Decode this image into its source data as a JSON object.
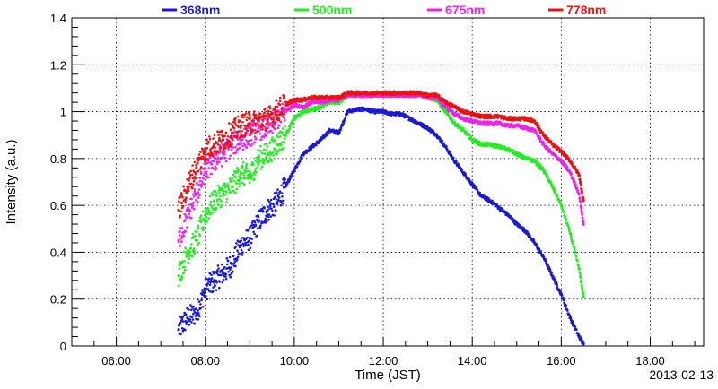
{
  "chart_data": {
    "type": "scatter",
    "title": "",
    "xlabel": "Time (JST)",
    "ylabel": "Intensity (a.u.)",
    "date": "2013-02-13",
    "x_unit": "hours (JST)",
    "xlim": [
      5.0,
      19.2
    ],
    "ylim": [
      0,
      1.4
    ],
    "x_ticks": [
      {
        "value": 6,
        "label": "06:00"
      },
      {
        "value": 8,
        "label": "08:00"
      },
      {
        "value": 10,
        "label": "10:00"
      },
      {
        "value": 12,
        "label": "12:00"
      },
      {
        "value": 14,
        "label": "14:00"
      },
      {
        "value": 16,
        "label": "16:00"
      },
      {
        "value": 18,
        "label": "18:00"
      }
    ],
    "y_ticks": [
      {
        "value": 0,
        "label": "0"
      },
      {
        "value": 0.2,
        "label": "0.2"
      },
      {
        "value": 0.4,
        "label": "0.4"
      },
      {
        "value": 0.6,
        "label": "0.6"
      },
      {
        "value": 0.8,
        "label": "0.8"
      },
      {
        "value": 1.0,
        "label": "1"
      },
      {
        "value": 1.2,
        "label": "1.2"
      },
      {
        "value": 1.4,
        "label": "1.4"
      }
    ],
    "grid": true,
    "legend_position": "top",
    "series": [
      {
        "name": "368nm",
        "color": "#1a1ad6",
        "x": [
          7.4,
          7.6,
          7.8,
          8.0,
          8.2,
          8.4,
          8.6,
          8.8,
          9.0,
          9.2,
          9.4,
          9.6,
          9.8,
          10.0,
          10.2,
          10.4,
          10.6,
          10.8,
          11.0,
          11.2,
          11.4,
          11.6,
          11.8,
          12.0,
          12.2,
          12.4,
          12.6,
          12.8,
          13.0,
          13.2,
          13.4,
          13.6,
          13.8,
          14.0,
          14.2,
          14.4,
          14.6,
          14.8,
          15.0,
          15.2,
          15.4,
          15.6,
          15.8,
          16.0,
          16.2,
          16.4,
          16.5
        ],
        "y": [
          0.07,
          0.12,
          0.14,
          0.24,
          0.28,
          0.31,
          0.35,
          0.43,
          0.46,
          0.53,
          0.58,
          0.61,
          0.68,
          0.75,
          0.82,
          0.85,
          0.88,
          0.92,
          0.91,
          1.0,
          1.01,
          1.01,
          1.0,
          1.0,
          0.99,
          0.99,
          0.97,
          0.95,
          0.93,
          0.9,
          0.85,
          0.79,
          0.74,
          0.69,
          0.64,
          0.62,
          0.59,
          0.56,
          0.52,
          0.49,
          0.44,
          0.38,
          0.3,
          0.22,
          0.12,
          0.04,
          0.01
        ]
      },
      {
        "name": "500nm",
        "color": "#22ee22",
        "x": [
          7.4,
          7.6,
          7.8,
          8.0,
          8.2,
          8.4,
          8.6,
          8.8,
          9.0,
          9.2,
          9.4,
          9.6,
          9.8,
          10.0,
          10.2,
          10.4,
          10.6,
          10.8,
          11.0,
          11.2,
          11.4,
          11.6,
          11.8,
          12.0,
          12.2,
          12.4,
          12.6,
          12.8,
          13.0,
          13.2,
          13.4,
          13.6,
          13.8,
          14.0,
          14.2,
          14.4,
          14.6,
          14.8,
          15.0,
          15.2,
          15.4,
          15.6,
          15.8,
          16.0,
          16.2,
          16.4,
          16.5
        ],
        "y": [
          0.3,
          0.4,
          0.45,
          0.56,
          0.62,
          0.65,
          0.68,
          0.74,
          0.72,
          0.8,
          0.82,
          0.86,
          0.9,
          0.97,
          1.0,
          1.01,
          1.02,
          1.04,
          1.04,
          1.07,
          1.07,
          1.07,
          1.07,
          1.07,
          1.07,
          1.07,
          1.07,
          1.07,
          1.06,
          1.05,
          1.0,
          0.95,
          0.92,
          0.88,
          0.86,
          0.86,
          0.85,
          0.84,
          0.82,
          0.8,
          0.79,
          0.75,
          0.68,
          0.6,
          0.48,
          0.33,
          0.21
        ]
      },
      {
        "name": "675nm",
        "color": "#ee22ee",
        "x": [
          7.4,
          7.6,
          7.8,
          8.0,
          8.2,
          8.4,
          8.6,
          8.8,
          9.0,
          9.2,
          9.4,
          9.6,
          9.8,
          10.0,
          10.2,
          10.4,
          10.6,
          10.8,
          11.0,
          11.2,
          11.4,
          11.6,
          11.8,
          12.0,
          12.2,
          12.4,
          12.6,
          12.8,
          13.0,
          13.2,
          13.4,
          13.6,
          13.8,
          14.0,
          14.2,
          14.4,
          14.6,
          14.8,
          15.0,
          15.2,
          15.4,
          15.6,
          15.8,
          16.0,
          16.2,
          16.4,
          16.5
        ],
        "y": [
          0.45,
          0.55,
          0.65,
          0.74,
          0.79,
          0.82,
          0.86,
          0.88,
          0.9,
          0.93,
          0.93,
          0.97,
          1.0,
          1.03,
          1.02,
          1.04,
          1.04,
          1.05,
          1.05,
          1.07,
          1.07,
          1.07,
          1.07,
          1.07,
          1.07,
          1.07,
          1.07,
          1.07,
          1.06,
          1.06,
          1.02,
          0.99,
          0.97,
          0.96,
          0.95,
          0.95,
          0.95,
          0.94,
          0.94,
          0.93,
          0.92,
          0.86,
          0.82,
          0.79,
          0.74,
          0.65,
          0.52
        ]
      },
      {
        "name": "778nm",
        "color": "#ee1111",
        "x": [
          7.4,
          7.6,
          7.8,
          8.0,
          8.2,
          8.4,
          8.6,
          8.8,
          9.0,
          9.2,
          9.4,
          9.6,
          9.8,
          10.0,
          10.2,
          10.4,
          10.6,
          10.8,
          11.0,
          11.2,
          11.4,
          11.6,
          11.8,
          12.0,
          12.2,
          12.4,
          12.6,
          12.8,
          13.0,
          13.2,
          13.4,
          13.6,
          13.8,
          14.0,
          14.2,
          14.4,
          14.6,
          14.8,
          15.0,
          15.2,
          15.4,
          15.6,
          15.8,
          16.0,
          16.2,
          16.4,
          16.5
        ],
        "y": [
          0.58,
          0.68,
          0.76,
          0.84,
          0.86,
          0.88,
          0.91,
          0.94,
          0.95,
          0.96,
          0.97,
          1.0,
          1.03,
          1.05,
          1.05,
          1.06,
          1.06,
          1.06,
          1.06,
          1.08,
          1.08,
          1.08,
          1.08,
          1.08,
          1.08,
          1.08,
          1.08,
          1.08,
          1.07,
          1.07,
          1.04,
          1.02,
          1.0,
          0.99,
          0.98,
          0.98,
          0.98,
          0.97,
          0.97,
          0.97,
          0.96,
          0.9,
          0.86,
          0.83,
          0.79,
          0.73,
          0.62
        ]
      }
    ]
  }
}
